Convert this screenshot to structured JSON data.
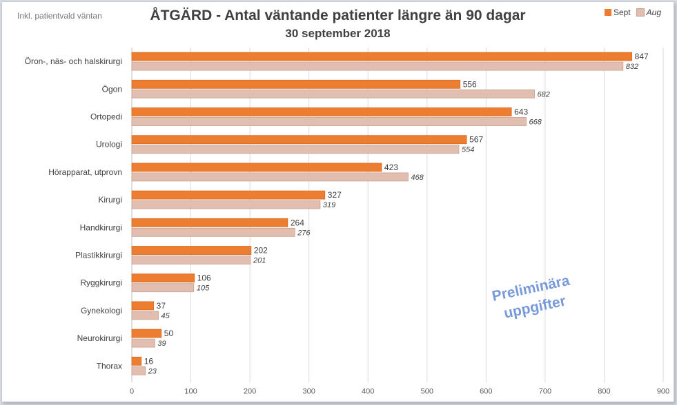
{
  "note": "Inkl. patientvald väntan",
  "watermark": [
    "Preliminära",
    "uppgifter"
  ],
  "colors": {
    "sept": "#ed7d31",
    "aug": "#e2beb0",
    "grid": "#d9d9d9",
    "text": "#404040"
  },
  "chart_data": {
    "type": "bar",
    "orientation": "horizontal",
    "title": "ÅTGÄRD - Antal väntande patienter längre än 90 dagar",
    "subtitle": "30 september 2018",
    "categories": [
      "Öron-, näs- och halskirurgi",
      "Ögon",
      "Ortopedi",
      "Urologi",
      "Hörapparat, utprovn",
      "Kirurgi",
      "Handkirurgi",
      "Plastikkirurgi",
      "Ryggkirurgi",
      "Gynekologi",
      "Neurokirurgi",
      "Thorax"
    ],
    "series": [
      {
        "name": "Sept",
        "values": [
          847,
          556,
          643,
          567,
          423,
          327,
          264,
          202,
          106,
          37,
          50,
          16
        ]
      },
      {
        "name": "Aug",
        "values": [
          832,
          682,
          668,
          554,
          468,
          319,
          276,
          201,
          105,
          45,
          39,
          23
        ]
      }
    ],
    "xlim": [
      0,
      900
    ],
    "xticks": [
      0,
      100,
      200,
      300,
      400,
      500,
      600,
      700,
      800,
      900
    ],
    "grid": true,
    "legend": "top-right"
  }
}
